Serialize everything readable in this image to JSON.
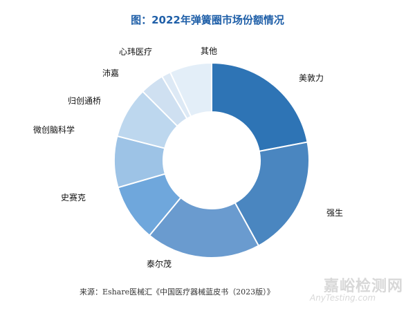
{
  "chart_data": {
    "type": "pie",
    "title": "图：2022年弹簧圈市场份额情况",
    "style": "donut",
    "categories": [
      "美敦力",
      "强生",
      "泰尔茂",
      "史赛克",
      "微创脑科学",
      "归创通桥",
      "沛嘉",
      "心玮医疗",
      "其他"
    ],
    "values": [
      22,
      20,
      19,
      9.5,
      8.5,
      8.5,
      4,
      1.5,
      7
    ],
    "colors": [
      "#2e74b5",
      "#4a86c0",
      "#6a9bcf",
      "#6fa7dc",
      "#9dc3e6",
      "#bdd7ee",
      "#cfe0f1",
      "#dde9f5",
      "#e3eef8"
    ]
  },
  "source": "来源：Eshare医械汇《中国医疗器械蓝皮书（2023版）》",
  "watermark": {
    "main": "嘉峪检测网",
    "sub": "AnyTesting.com"
  }
}
